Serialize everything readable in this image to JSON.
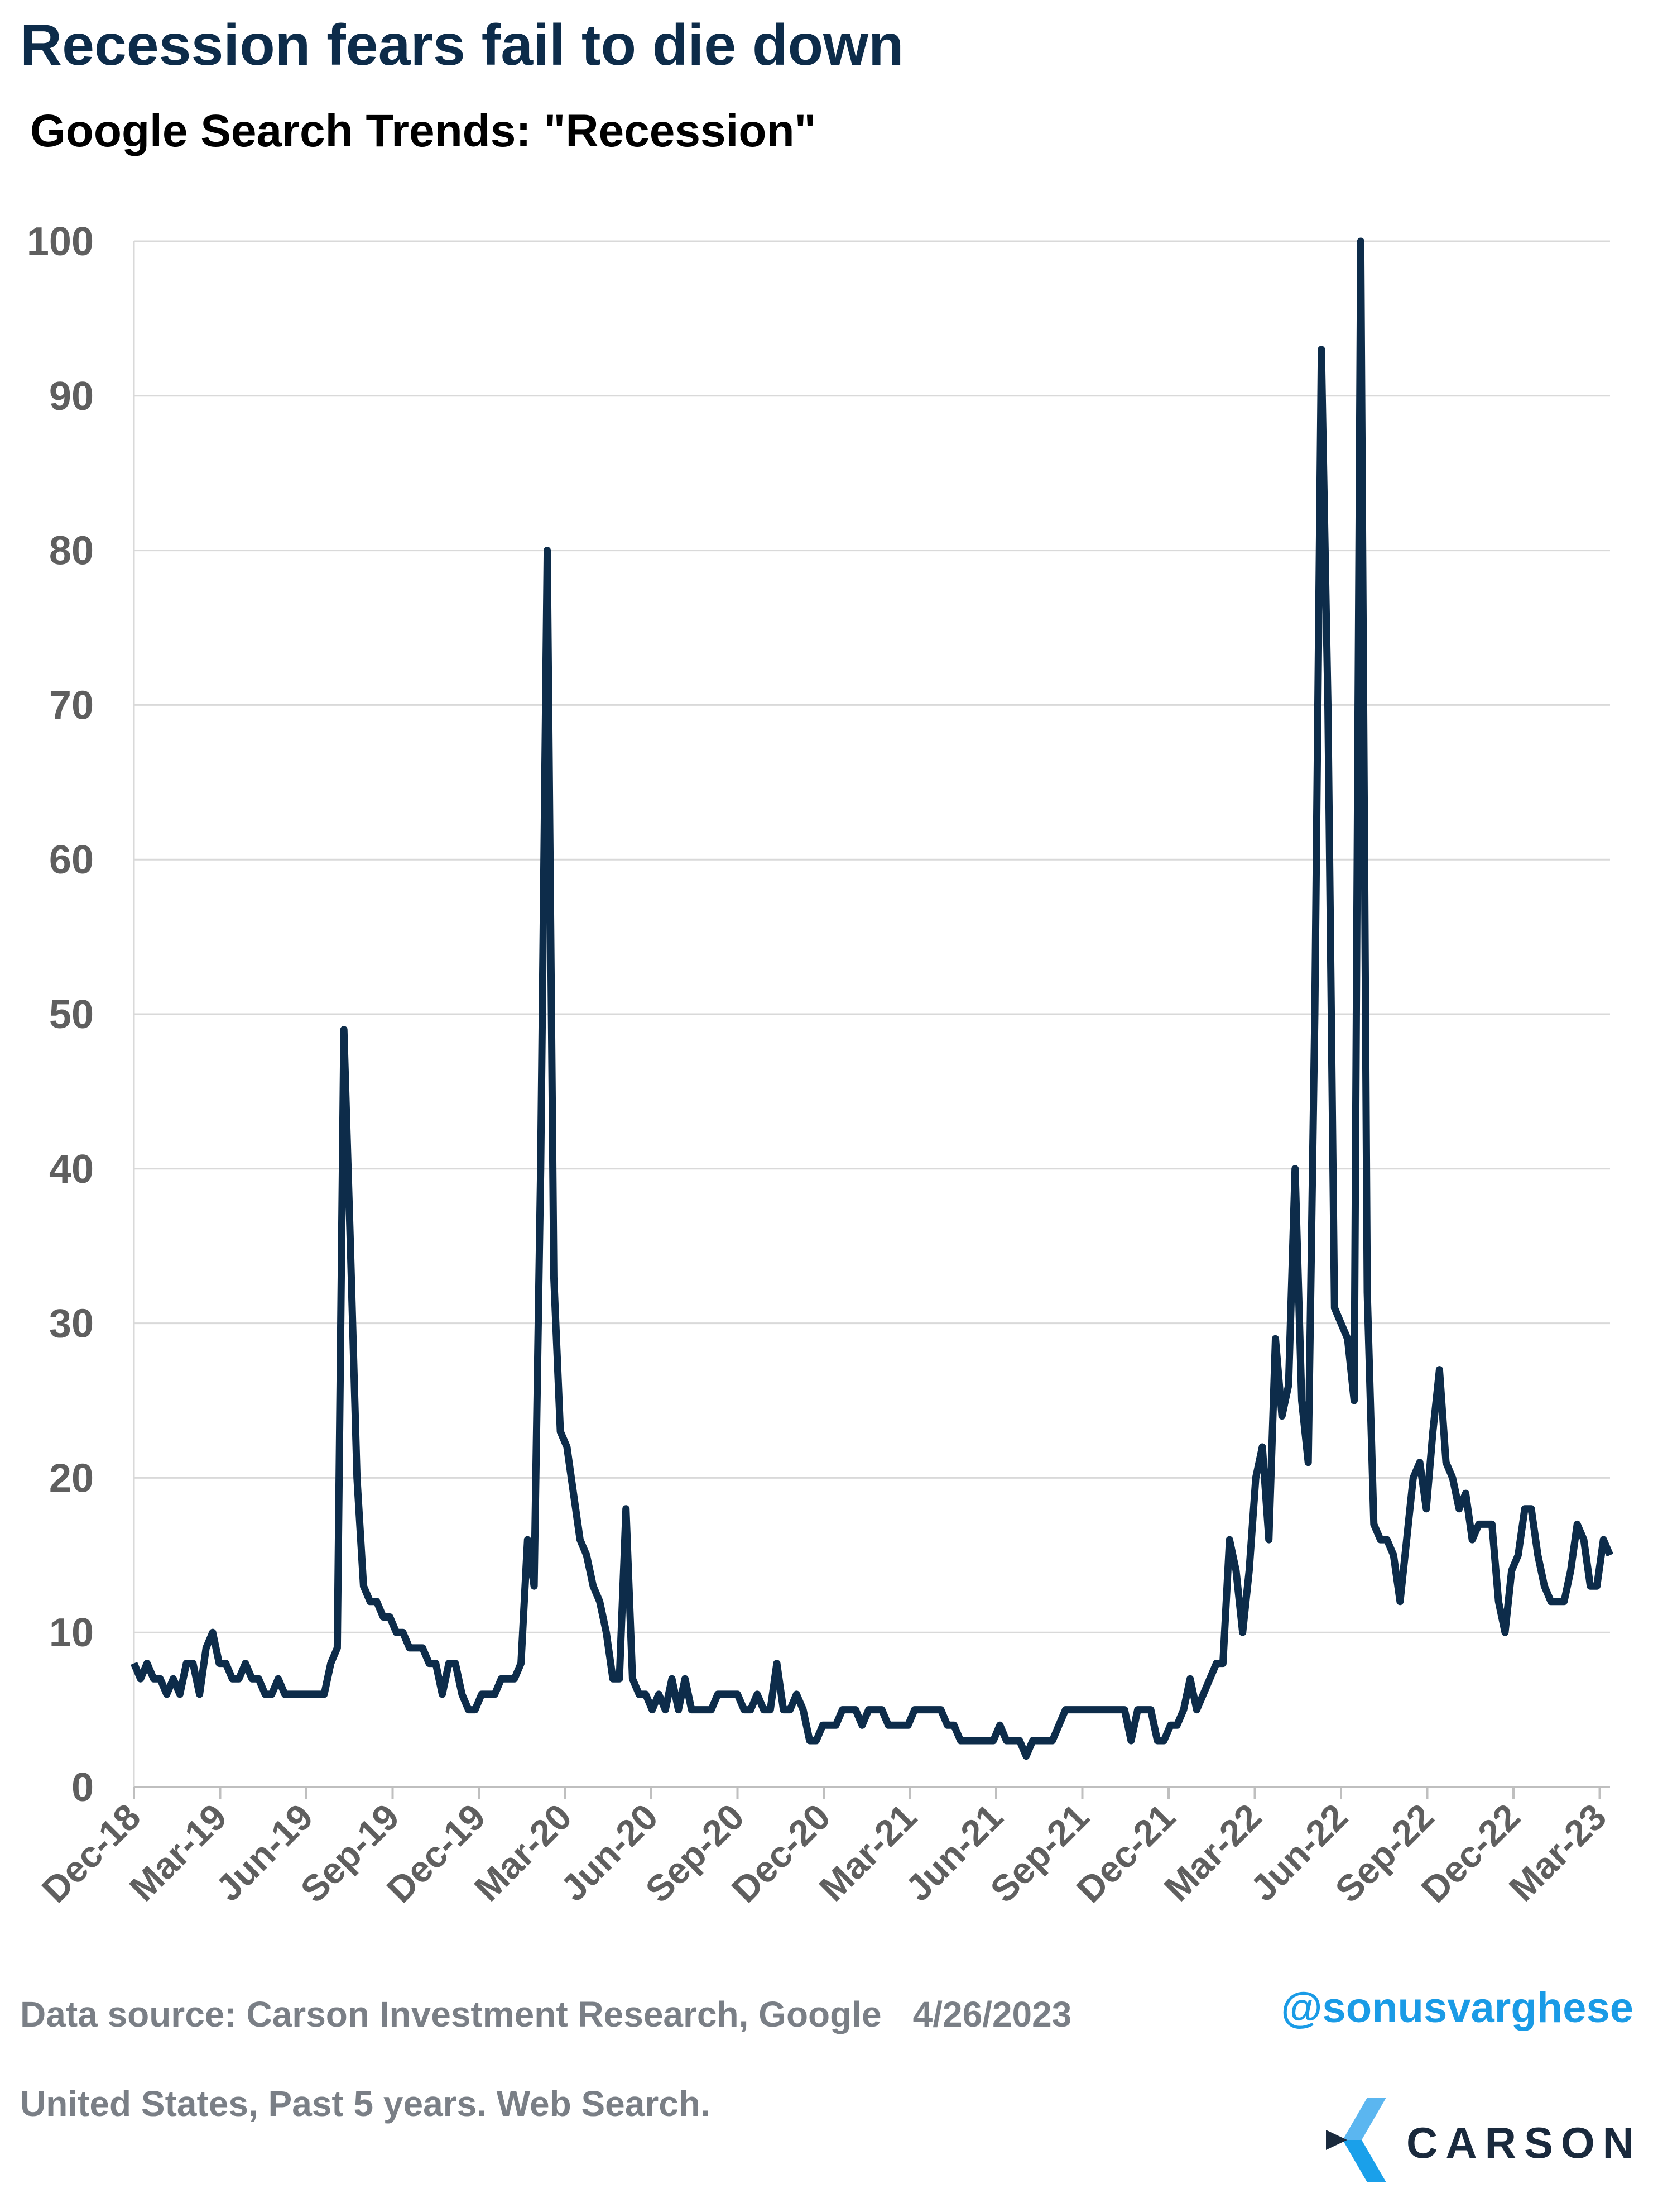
{
  "header": {
    "title": "Recession fears fail to die down",
    "subtitle": "Google Search Trends: \"Recession\""
  },
  "footer": {
    "source": "Data source: Carson Investment Research, Google",
    "date": "4/26/2023",
    "note": "United States, Past 5 years. Web Search.",
    "handle": "@sonusvarghese",
    "logo_text": "CARSON"
  },
  "colors": {
    "line": "#0d2c4a",
    "grid": "#d9d9d9",
    "tick_text": "#5f5f5f",
    "handle": "#1a9be6",
    "logo_light": "#5bb6f0",
    "logo_dark": "#1a2a3d"
  },
  "chart_data": {
    "type": "line",
    "title": "Google Search Trends: \"Recession\"",
    "xlabel": "",
    "ylabel": "",
    "ylim": [
      0,
      100
    ],
    "yticks": [
      0,
      10,
      20,
      30,
      40,
      50,
      60,
      70,
      80,
      90,
      100
    ],
    "grid": "horizontal",
    "xtick_labels": [
      "Dec-18",
      "Mar-19",
      "Jun-19",
      "Sep-19",
      "Dec-19",
      "Mar-20",
      "Jun-20",
      "Sep-20",
      "Dec-20",
      "Mar-21",
      "Jun-21",
      "Sep-21",
      "Dec-21",
      "Mar-22",
      "Jun-22",
      "Sep-22",
      "Dec-22",
      "Mar-23"
    ],
    "series": [
      {
        "frequency": "weekly",
        "start": "2018-12-01",
        "values": [
          8,
          7,
          8,
          7,
          7,
          6,
          7,
          6,
          8,
          8,
          6,
          9,
          10,
          8,
          8,
          7,
          7,
          8,
          7,
          7,
          6,
          6,
          7,
          6,
          6,
          6,
          6,
          6,
          6,
          6,
          8,
          9,
          49,
          35,
          20,
          13,
          12,
          12,
          11,
          11,
          10,
          10,
          9,
          9,
          9,
          8,
          8,
          6,
          8,
          8,
          6,
          5,
          5,
          6,
          6,
          6,
          7,
          7,
          7,
          8,
          16,
          13,
          40,
          80,
          33,
          23,
          22,
          19,
          16,
          15,
          13,
          12,
          10,
          7,
          7,
          18,
          7,
          6,
          6,
          5,
          6,
          5,
          7,
          5,
          7,
          5,
          5,
          5,
          5,
          6,
          6,
          6,
          6,
          5,
          5,
          6,
          5,
          5,
          8,
          5,
          5,
          6,
          5,
          3,
          3,
          4,
          4,
          4,
          5,
          5,
          5,
          4,
          5,
          5,
          5,
          4,
          4,
          4,
          4,
          5,
          5,
          5,
          5,
          5,
          4,
          4,
          3,
          3,
          3,
          3,
          3,
          3,
          4,
          3,
          3,
          3,
          2,
          3,
          3,
          3,
          3,
          4,
          5,
          5,
          5,
          5,
          5,
          5,
          5,
          5,
          5,
          5,
          3,
          5,
          5,
          5,
          3,
          3,
          4,
          4,
          5,
          7,
          5,
          6,
          7,
          8,
          8,
          16,
          14,
          10,
          14,
          20,
          22,
          16,
          29,
          24,
          26,
          40,
          25,
          21,
          50,
          93,
          70,
          31,
          30,
          29,
          25,
          100,
          32,
          17,
          16,
          16,
          15,
          12,
          16,
          20,
          21,
          18,
          23,
          27,
          21,
          20,
          18,
          19,
          16,
          17,
          17,
          17,
          12,
          10,
          14,
          15,
          18,
          18,
          15,
          13,
          12,
          12,
          12,
          14,
          17,
          16,
          13,
          13,
          16,
          15
        ]
      }
    ]
  }
}
